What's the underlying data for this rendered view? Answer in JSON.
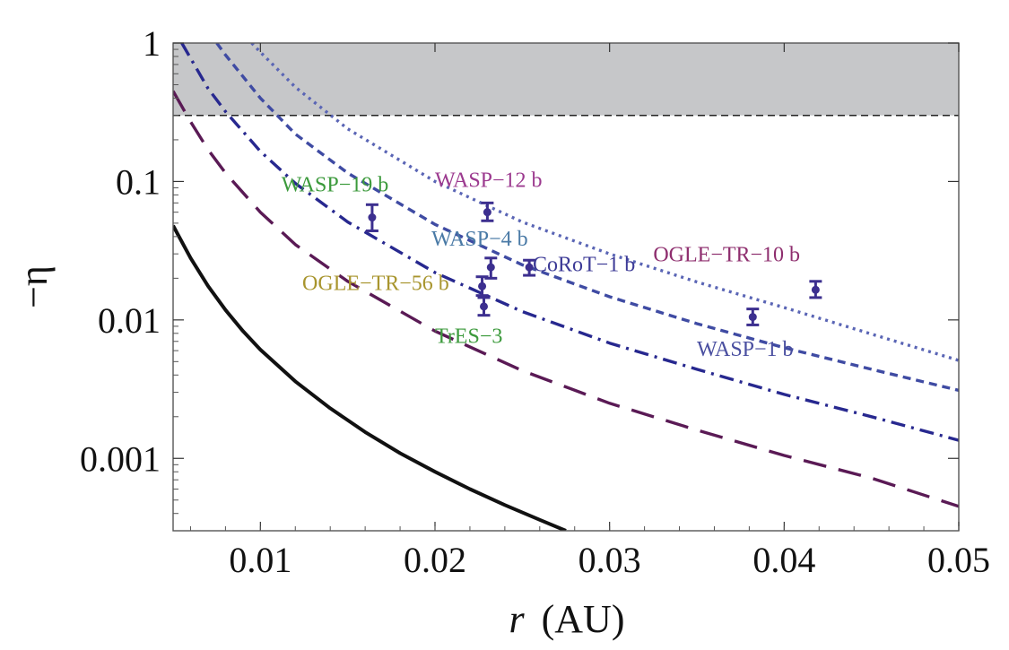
{
  "chart_data": {
    "type": "scatter",
    "title": "",
    "xlabel_var": "r",
    "xlabel_unit": "(AU)",
    "ylabel": "−η",
    "xlim": [
      0.005,
      0.05
    ],
    "ylim": [
      0.0003,
      1.0
    ],
    "y_scale": "log",
    "x_ticks": [
      {
        "value": 0.01,
        "label": "0.01"
      },
      {
        "value": 0.02,
        "label": "0.02"
      },
      {
        "value": 0.03,
        "label": "0.03"
      },
      {
        "value": 0.04,
        "label": "0.04"
      },
      {
        "value": 0.05,
        "label": "0.05"
      }
    ],
    "y_ticks": [
      {
        "value": 1,
        "label": "1"
      },
      {
        "value": 0.1,
        "label": "0.1"
      },
      {
        "value": 0.01,
        "label": "0.01"
      },
      {
        "value": 0.001,
        "label": "0.001"
      }
    ],
    "excluded_region": {
      "y_from": 0.3,
      "y_to": 1.0,
      "color": "#c6c7c9"
    },
    "reference_line": {
      "y": 0.3,
      "style": "dashed",
      "color": "#222222"
    },
    "curves": [
      {
        "style": "solid",
        "color": "#111111",
        "x": [
          0.005,
          0.006,
          0.007,
          0.008,
          0.009,
          0.01,
          0.012,
          0.014,
          0.016,
          0.018,
          0.02,
          0.022,
          0.024,
          0.026,
          0.0275
        ],
        "y": [
          0.048,
          0.028,
          0.0176,
          0.0118,
          0.0083,
          0.0061,
          0.0036,
          0.0023,
          0.00155,
          0.00109,
          0.0008,
          0.0006,
          0.00046,
          0.00036,
          0.0003
        ]
      },
      {
        "style": "long-dash",
        "color": "#5a1a55",
        "x": [
          0.005,
          0.006,
          0.007,
          0.008,
          0.01,
          0.012,
          0.015,
          0.02,
          0.025,
          0.03,
          0.035,
          0.04,
          0.045,
          0.05
        ],
        "y": [
          0.45,
          0.27,
          0.17,
          0.115,
          0.06,
          0.035,
          0.019,
          0.0083,
          0.0043,
          0.0025,
          0.0016,
          0.00105,
          0.00072,
          0.00045
        ]
      },
      {
        "style": "dash-dot",
        "color": "#27288f",
        "x": [
          0.0055,
          0.007,
          0.008,
          0.01,
          0.012,
          0.015,
          0.02,
          0.025,
          0.03,
          0.035,
          0.04,
          0.045,
          0.05
        ],
        "y": [
          1.0,
          0.47,
          0.32,
          0.165,
          0.097,
          0.051,
          0.022,
          0.0115,
          0.0068,
          0.0044,
          0.0029,
          0.002,
          0.00135
        ]
      },
      {
        "style": "short-dash",
        "color": "#3f4ba3",
        "x": [
          0.0075,
          0.008,
          0.01,
          0.012,
          0.015,
          0.02,
          0.025,
          0.03,
          0.035,
          0.04,
          0.045,
          0.05
        ],
        "y": [
          1.0,
          0.82,
          0.4,
          0.22,
          0.115,
          0.049,
          0.025,
          0.0147,
          0.0094,
          0.0063,
          0.0044,
          0.0031
        ]
      },
      {
        "style": "dotted",
        "color": "#5a65b5",
        "x": [
          0.0095,
          0.01,
          0.012,
          0.015,
          0.02,
          0.025,
          0.03,
          0.035,
          0.04,
          0.045,
          0.05
        ],
        "y": [
          1.0,
          0.86,
          0.48,
          0.24,
          0.1,
          0.051,
          0.03,
          0.0188,
          0.0123,
          0.0079,
          0.0051
        ]
      }
    ],
    "points": [
      {
        "x": 0.0164,
        "y": 0.055,
        "ylo": 0.044,
        "yhi": 0.068
      },
      {
        "x": 0.023,
        "y": 0.06,
        "ylo": 0.052,
        "yhi": 0.07
      },
      {
        "x": 0.0232,
        "y": 0.024,
        "ylo": 0.02,
        "yhi": 0.028
      },
      {
        "x": 0.0227,
        "y": 0.0175,
        "ylo": 0.015,
        "yhi": 0.0205
      },
      {
        "x": 0.0228,
        "y": 0.0125,
        "ylo": 0.0108,
        "yhi": 0.0145
      },
      {
        "x": 0.0254,
        "y": 0.024,
        "ylo": 0.021,
        "yhi": 0.027
      },
      {
        "x": 0.0382,
        "y": 0.0105,
        "ylo": 0.0092,
        "yhi": 0.012
      },
      {
        "x": 0.0418,
        "y": 0.0165,
        "ylo": 0.0145,
        "yhi": 0.019
      }
    ],
    "point_color": "#3c2f8f",
    "labels": [
      {
        "text": "WASP−19 b",
        "x": 0.0112,
        "y": 0.085,
        "color": "#3c9a3c"
      },
      {
        "text": "WASP−12 b",
        "x": 0.02,
        "y": 0.091,
        "color": "#9c3a8f"
      },
      {
        "text": "WASP−4 b",
        "x": 0.0198,
        "y": 0.0345,
        "color": "#4a7aa6"
      },
      {
        "text": "CoRoT−1 b",
        "x": 0.0256,
        "y": 0.0225,
        "color": "#3c3a96"
      },
      {
        "text": "OGLE−TR−10 b",
        "x": 0.0325,
        "y": 0.0265,
        "color": "#8e2e6e"
      },
      {
        "text": "OGLE−TR−56 b",
        "x": 0.0124,
        "y": 0.0165,
        "color": "#a8952e"
      },
      {
        "text": "TrES−3",
        "x": 0.02,
        "y": 0.0068,
        "color": "#3c9a3c"
      },
      {
        "text": "WASP−1 b",
        "x": 0.035,
        "y": 0.0055,
        "color": "#4a4fa0"
      }
    ]
  }
}
